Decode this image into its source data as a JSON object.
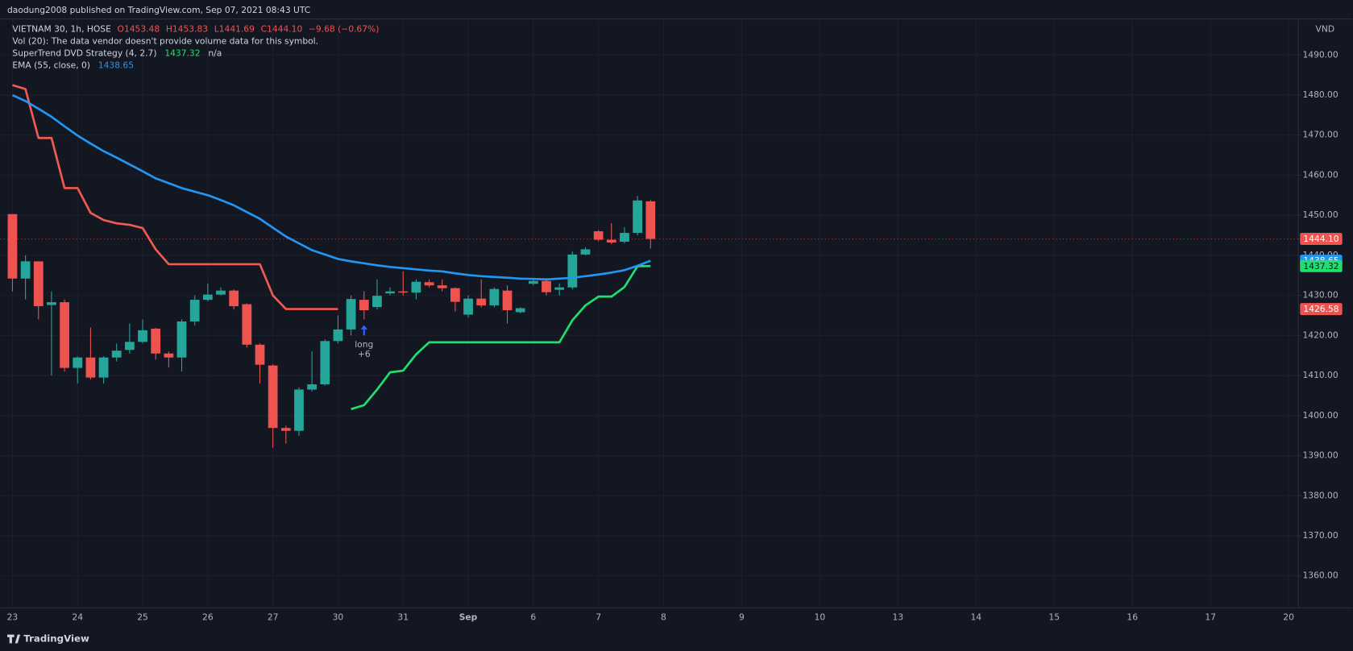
{
  "header": {
    "published": "daodung2008 published on TradingView.com, Sep 07, 2021 08:43 UTC"
  },
  "footer": {
    "brand": "TradingView"
  },
  "chart_data": {
    "type": "candlestick",
    "legend": {
      "symbol": "VIETNAM 30, 1h, HOSE",
      "ohlc": [
        "O1453.48",
        "H1453.83",
        "L1441.69",
        "C1444.10"
      ],
      "change": "−9.68 (−0.67%)",
      "vol": "Vol (20): The data vendor doesn't provide volume data for this symbol.",
      "supertrend": "SuperTrend  DVD Strategy (4, 2.7)",
      "supertrend_value": "1437.32",
      "supertrend_na": "n/a",
      "ema": "EMA (55, close, 0)",
      "ema_value": "1438.65"
    },
    "currency": "VND",
    "up_color": "#26a69a",
    "down_color": "#ef5350",
    "candles": {
      "open": [
        1450.3,
        1434.2,
        1438.5,
        1427.6,
        1428.3,
        1411.9,
        1414.5,
        1409.5,
        1414.5,
        1416.4,
        1418.4,
        1421.7,
        1415.5,
        1414.5,
        1423.5,
        1428.9,
        1430.2,
        1431.2,
        1427.8,
        1417.7,
        1412.5,
        1396.9,
        1396.2,
        1406.5,
        1407.8,
        1418.6,
        1421.5,
        1428.9,
        1427.1,
        1430.5,
        1431.0,
        1430.7,
        1433.3,
        1432.5,
        1431.8,
        1425.2,
        1429.2,
        1427.5,
        1431.2,
        1425.8,
        1432.9,
        1433.6,
        1431.4,
        1432.0,
        1440.2,
        1446.0,
        1443.9,
        1443.4,
        1445.6,
        1453.48
      ],
      "high": [
        1450.3,
        1440.0,
        1438.5,
        1431.0,
        1429.0,
        1414.8,
        1422.0,
        1414.8,
        1418.0,
        1423.0,
        1424.0,
        1421.9,
        1416.0,
        1424.0,
        1430.0,
        1433.0,
        1432.0,
        1431.5,
        1428.0,
        1418.0,
        1412.8,
        1397.5,
        1407.0,
        1416.0,
        1419.0,
        1425.0,
        1430.0,
        1431.0,
        1434.0,
        1432.0,
        1436.0,
        1434.0,
        1434.0,
        1434.0,
        1432.0,
        1430.0,
        1434.0,
        1432.0,
        1432.5,
        1427.0,
        1434.0,
        1434.0,
        1433.0,
        1441.0,
        1442.0,
        1446.3,
        1448.0,
        1447.0,
        1454.8,
        1453.83
      ],
      "low": [
        1431.0,
        1429.0,
        1424.0,
        1410.0,
        1411.0,
        1408.0,
        1409.0,
        1408.0,
        1413.5,
        1415.5,
        1418.0,
        1414.0,
        1412.0,
        1411.0,
        1422.5,
        1428.5,
        1430.0,
        1426.5,
        1417.0,
        1408.0,
        1392.0,
        1393.0,
        1395.0,
        1406.0,
        1407.5,
        1418.0,
        1420.0,
        1424.0,
        1426.5,
        1430.0,
        1430.0,
        1429.0,
        1432.0,
        1431.0,
        1426.0,
        1424.5,
        1427.0,
        1427.0,
        1423.0,
        1425.5,
        1432.5,
        1430.0,
        1430.0,
        1431.5,
        1440.0,
        1443.5,
        1442.8,
        1443.0,
        1445.0,
        1441.69
      ],
      "close": [
        1434.2,
        1438.5,
        1427.3,
        1428.3,
        1411.9,
        1414.5,
        1409.5,
        1414.5,
        1416.2,
        1418.4,
        1421.3,
        1415.5,
        1414.5,
        1423.5,
        1428.9,
        1430.2,
        1431.2,
        1427.3,
        1417.7,
        1412.7,
        1396.9,
        1396.2,
        1406.5,
        1407.8,
        1418.6,
        1421.5,
        1429.1,
        1426.3,
        1429.9,
        1431.0,
        1430.7,
        1433.4,
        1432.5,
        1431.8,
        1428.4,
        1429.2,
        1427.5,
        1431.6,
        1426.3,
        1426.8,
        1433.6,
        1430.8,
        1432.0,
        1440.2,
        1441.5,
        1443.9,
        1443.2,
        1445.6,
        1453.7,
        1444.1
      ]
    },
    "lines": [
      {
        "color": "#f05a50",
        "values": [
          1482.5,
          1481.5,
          1469.3,
          1469.3,
          1456.8,
          1456.8,
          1450.6,
          1448.8,
          1448.0,
          1447.6,
          1446.8,
          1441.5,
          1437.8,
          1437.8,
          1437.8,
          1437.8,
          1437.8,
          1437.8,
          1437.8,
          1437.8,
          1430.0,
          1426.6,
          1426.6,
          1426.6,
          1426.6,
          1426.6,
          null,
          null,
          null,
          null,
          null,
          null,
          null,
          null,
          null,
          null,
          null,
          null,
          null,
          null,
          null,
          null,
          null,
          null,
          null,
          null,
          null,
          null,
          null,
          null
        ]
      },
      {
        "color": "#1fe06f",
        "values": [
          null,
          null,
          null,
          null,
          null,
          null,
          null,
          null,
          null,
          null,
          null,
          null,
          null,
          null,
          null,
          null,
          null,
          null,
          null,
          null,
          null,
          null,
          null,
          null,
          null,
          null,
          1401.6,
          1402.6,
          1406.5,
          1410.8,
          1411.2,
          1415.3,
          1418.3,
          1418.3,
          1418.3,
          1418.3,
          1418.3,
          1418.3,
          1418.3,
          1418.3,
          1418.3,
          1418.3,
          1418.3,
          1423.8,
          1427.5,
          1429.7,
          1429.7,
          1432.1,
          1437.3,
          1437.32
        ]
      },
      {
        "color": "#2196f3",
        "values": [
          1480.0,
          1478.5,
          1476.6,
          1474.6,
          1472.2,
          1469.9,
          1467.9,
          1466.0,
          1464.4,
          1462.7,
          1461.0,
          1459.2,
          1458.0,
          1456.8,
          1455.9,
          1455.0,
          1453.8,
          1452.5,
          1450.8,
          1449.1,
          1446.9,
          1444.7,
          1443.0,
          1441.3,
          1440.2,
          1439.1,
          1438.5,
          1438.0,
          1437.5,
          1437.1,
          1436.8,
          1436.5,
          1436.2,
          1436.0,
          1435.5,
          1435.1,
          1434.8,
          1434.6,
          1434.4,
          1434.2,
          1434.1,
          1434.0,
          1434.2,
          1434.4,
          1434.8,
          1435.2,
          1435.7,
          1436.3,
          1437.4,
          1438.65
        ]
      }
    ],
    "annotation": {
      "lines": [
        "long",
        "+6"
      ],
      "color": "#2962ff"
    },
    "x_labels": [
      "23",
      "24",
      "25",
      "26",
      "27",
      "30",
      "31",
      "Sep",
      "6",
      "7",
      "8",
      "9",
      "10",
      "13",
      "14",
      "15",
      "16",
      "17",
      "20"
    ],
    "ylim": [
      1352,
      1499
    ],
    "yticks": [
      {
        "value": 1490,
        "label": "1490.00"
      },
      {
        "value": 1480,
        "label": "1480.00"
      },
      {
        "value": 1470,
        "label": "1470.00"
      },
      {
        "value": 1460,
        "label": "1460.00"
      },
      {
        "value": 1450,
        "label": "1450.00"
      },
      {
        "value": 1440,
        "label": "1440.00"
      },
      {
        "value": 1430,
        "label": "1430.00"
      },
      {
        "value": 1420,
        "label": "1420.00"
      },
      {
        "value": 1410,
        "label": "1410.00"
      },
      {
        "value": 1400,
        "label": "1400.00"
      },
      {
        "value": 1390,
        "label": "1390.00"
      },
      {
        "value": 1380,
        "label": "1380.00"
      },
      {
        "value": 1370,
        "label": "1370.00"
      },
      {
        "value": 1360,
        "label": "1360.00"
      }
    ],
    "grid": true,
    "price_labels": [
      {
        "value": 1444.1,
        "label": "1444.10",
        "color": "#ef5350"
      },
      {
        "value": 1438.65,
        "label": "1438.65",
        "color": "#2196f3"
      },
      {
        "value": 1437.32,
        "label": "1437.32",
        "color": "#1fe06f"
      },
      {
        "value": 1426.58,
        "label": "1426.58",
        "color": "#ef5350"
      }
    ]
  }
}
